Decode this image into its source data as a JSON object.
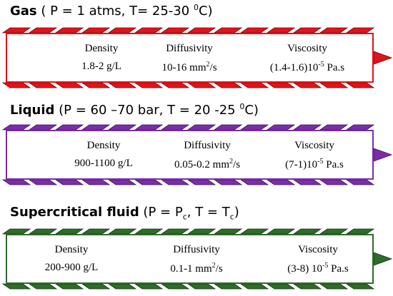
{
  "colors": {
    "gas": "#e0141a",
    "liquid": "#7a2ea8",
    "supercritical": "#2f6b2a",
    "text": "#000000"
  },
  "gas": {
    "name": "Gas",
    "conditions_pre": " ( P = 1 atms, T= 25-30 ",
    "temp_unit_sup": "0",
    "conditions_post": "C)",
    "density_label": "Density",
    "density_value": "1.8-2 g/L",
    "diffusivity_label": "Diffusivity",
    "diffusivity_value_pre": "10-16 mm",
    "diffusivity_sup": "2",
    "diffusivity_value_post": "/s",
    "viscosity_label": "Viscosity",
    "viscosity_value_pre": "(1.4-1.6)10",
    "viscosity_sup": "-5",
    "viscosity_value_post": " Pa.s"
  },
  "liquid": {
    "name": "Liquid",
    "conditions_pre": " (P = 60 –70 bar, T = 20 -25 ",
    "temp_unit_sup": "0",
    "conditions_post": "C)",
    "density_label": "Density",
    "density_value": "900-1100 g/L",
    "diffusivity_label": "Diffusivity",
    "diffusivity_value_pre": "0.05-0.2 mm",
    "diffusivity_sup": "2",
    "diffusivity_value_post": "/s",
    "viscosity_label": "Viscosity",
    "viscosity_value_pre": "(7-1)10",
    "viscosity_sup": "-5",
    "viscosity_value_post": " Pa.s"
  },
  "supercritical": {
    "name": "Supercritical fluid",
    "conditions_pre": " (P = P",
    "p_sub": "c",
    "conditions_mid": ", T = T",
    "t_sub": "c",
    "conditions_post": ")",
    "density_label": "Density",
    "density_value": "200-900 g/L",
    "diffusivity_label": "Diffusivity",
    "diffusivity_value_pre": "0.1-1 mm",
    "diffusivity_sup": "2",
    "diffusivity_value_post": "/s",
    "viscosity_label": "Viscosity",
    "viscosity_value_pre": "(3-8) 10",
    "viscosity_sup": "-5",
    "viscosity_value_post": " Pa.s"
  }
}
